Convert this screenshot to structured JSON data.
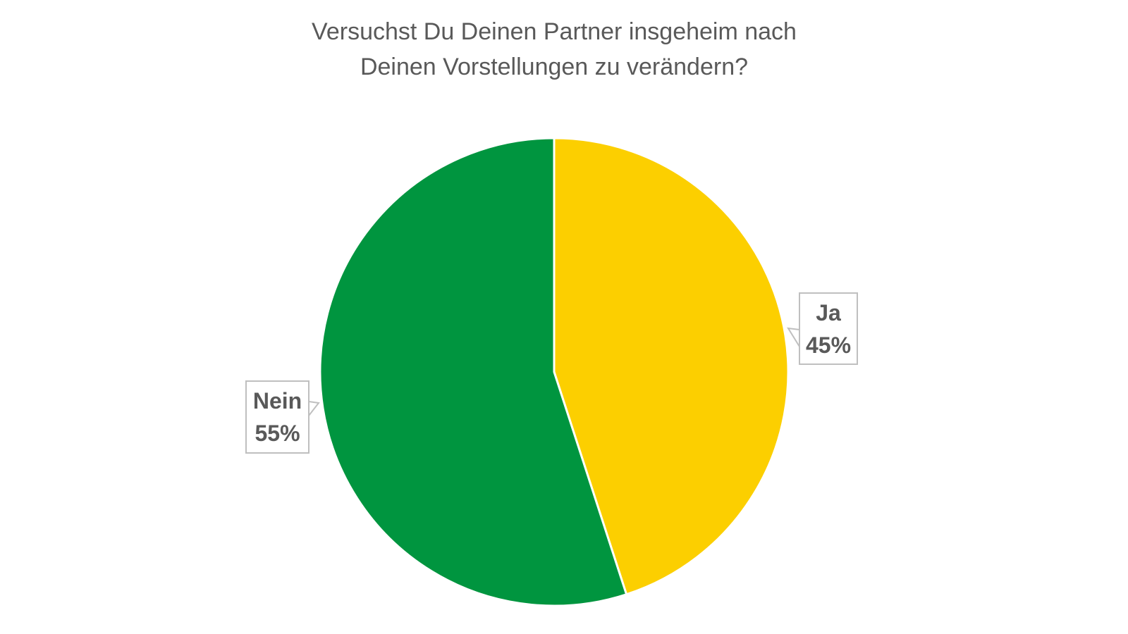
{
  "chart_data": {
    "type": "pie",
    "title_lines": [
      "Versuchst Du Deinen Partner insgeheim nach",
      "Deinen Vorstellungen zu verändern?"
    ],
    "slices": [
      {
        "label": "Ja",
        "value": 45,
        "value_label": "45%",
        "color": "#FCCF00"
      },
      {
        "label": "Nein",
        "value": 55,
        "value_label": "55%",
        "color": "#00953F"
      }
    ],
    "start_angle": "top",
    "direction": "clockwise",
    "legend": "none",
    "data_labels": "callouts"
  }
}
